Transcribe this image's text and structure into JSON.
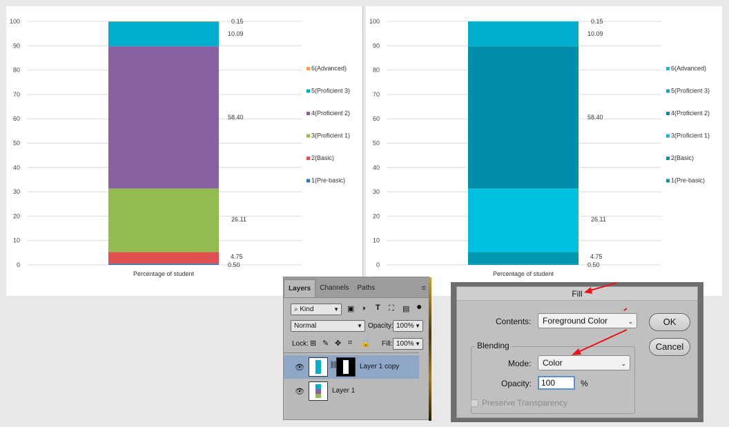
{
  "chart_data": [
    {
      "type": "bar",
      "stacked": true,
      "categories": [
        "Percentage of student"
      ],
      "ylim": [
        0,
        100
      ],
      "yticks": [
        0,
        10,
        20,
        30,
        40,
        50,
        60,
        70,
        80,
        90,
        100
      ],
      "grid": true,
      "legend_position": "right",
      "series": [
        {
          "name": "1(Pre-basic)",
          "values": [
            0.5
          ],
          "color": "#2e75b6"
        },
        {
          "name": "2(Basic)",
          "values": [
            4.75
          ],
          "color": "#e05050"
        },
        {
          "name": "3(Proficient 1)",
          "values": [
            26.11
          ],
          "color": "#92bb50"
        },
        {
          "name": "4(Proficient 2)",
          "values": [
            58.4
          ],
          "color": "#8a62a4"
        },
        {
          "name": "5(Proficient 3)",
          "values": [
            10.09
          ],
          "color": "#00aecb"
        },
        {
          "name": "6(Advanced)",
          "values": [
            0.15
          ],
          "color": "#f39c4a"
        }
      ],
      "data_labels": [
        "0.50",
        "4.75",
        "26.11",
        "58.40",
        "10.09",
        "0.15"
      ]
    },
    {
      "type": "bar",
      "stacked": true,
      "categories": [
        "Percentage of student"
      ],
      "ylim": [
        0,
        100
      ],
      "yticks": [
        0,
        10,
        20,
        30,
        40,
        50,
        60,
        70,
        80,
        90,
        100
      ],
      "grid": true,
      "legend_position": "right",
      "series": [
        {
          "name": "1(Pre-basic)",
          "values": [
            0.5
          ],
          "color": "#0096ae"
        },
        {
          "name": "2(Basic)",
          "values": [
            4.75
          ],
          "color": "#0096ae"
        },
        {
          "name": "3(Proficient 1)",
          "values": [
            26.11
          ],
          "color": "#00c0df"
        },
        {
          "name": "4(Proficient 2)",
          "values": [
            58.4
          ],
          "color": "#008ea8"
        },
        {
          "name": "5(Proficient 3)",
          "values": [
            10.09
          ],
          "color": "#00aecb"
        },
        {
          "name": "6(Advanced)",
          "values": [
            0.15
          ],
          "color": "#00c6e2"
        }
      ],
      "data_labels": [
        "0.50",
        "4.75",
        "26.11",
        "58.40",
        "10.09",
        "0.15"
      ]
    }
  ],
  "layers_panel": {
    "tabs": [
      "Layers",
      "Channels",
      "Paths"
    ],
    "filter_kind": "Kind",
    "blend_mode": "Normal",
    "opacity_label": "Opacity:",
    "opacity_value": "100%",
    "lock_label": "Lock:",
    "fill_label": "Fill:",
    "fill_value": "100%",
    "layers": [
      {
        "name": "Layer 1 copy",
        "selected": true
      },
      {
        "name": "Layer 1",
        "selected": false
      }
    ]
  },
  "fill_dialog": {
    "title": "Fill",
    "contents_label": "Contents:",
    "contents_value": "Foreground Color",
    "ok_label": "OK",
    "cancel_label": "Cancel",
    "blending_label": "Blending",
    "mode_label": "Mode:",
    "mode_value": "Color",
    "opacity_label": "Opacity:",
    "opacity_value": "100",
    "percent": "%",
    "preserve_label": "Preserve Transparency"
  },
  "annotation_color": "#e8141a"
}
